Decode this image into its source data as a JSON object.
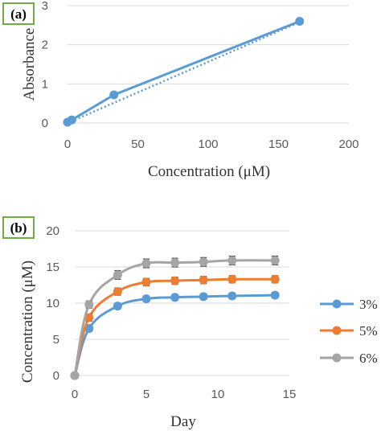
{
  "chart_data": [
    {
      "panel": "(a)",
      "type": "line",
      "xlabel": "Concentration (μM)",
      "ylabel": "Absorbance",
      "xlim": [
        0,
        200
      ],
      "ylim": [
        0,
        3
      ],
      "xticks": [
        0,
        50,
        100,
        150,
        200
      ],
      "yticks": [
        0,
        1,
        2,
        3
      ],
      "grid": "horizontal",
      "legend": "none",
      "color": "#5B9BD5",
      "series": [
        {
          "x": [
            0,
            3,
            33,
            165
          ],
          "y": [
            0.02,
            0.08,
            0.72,
            2.6
          ],
          "marker": "circle"
        }
      ],
      "trendline": {
        "style": "dotted",
        "x": [
          0,
          165
        ],
        "y": [
          0.0,
          2.58
        ]
      }
    },
    {
      "panel": "(b)",
      "type": "line",
      "xlabel": "Day",
      "ylabel": "Concentration (μM)",
      "xlim": [
        0,
        15
      ],
      "ylim": [
        0,
        20
      ],
      "xticks": [
        0,
        5,
        10,
        15
      ],
      "yticks": [
        0,
        5,
        10,
        15,
        20
      ],
      "grid": "horizontal",
      "legend": "right",
      "error_bars": true,
      "series": [
        {
          "name": "3%",
          "color": "#5B9BD5",
          "x": [
            0,
            1,
            3,
            5,
            7,
            9,
            11,
            14
          ],
          "y": [
            0,
            6.5,
            9.6,
            10.6,
            10.8,
            10.9,
            11.0,
            11.1
          ],
          "err": [
            0,
            0.4,
            0.4,
            0.4,
            0.4,
            0.4,
            0.4,
            0.4
          ]
        },
        {
          "name": "5%",
          "color": "#ED7D31",
          "x": [
            0,
            1,
            3,
            5,
            7,
            9,
            11,
            14
          ],
          "y": [
            0,
            8.0,
            11.6,
            12.9,
            13.1,
            13.2,
            13.3,
            13.3
          ],
          "err": [
            0,
            0.5,
            0.5,
            0.5,
            0.5,
            0.5,
            0.5,
            0.5
          ]
        },
        {
          "name": "6%",
          "color": "#A5A5A5",
          "x": [
            0,
            1,
            3,
            5,
            7,
            9,
            11,
            14
          ],
          "y": [
            0,
            9.8,
            13.9,
            15.5,
            15.6,
            15.7,
            15.9,
            15.9
          ],
          "err": [
            0,
            0.5,
            0.6,
            0.6,
            0.6,
            0.6,
            0.6,
            0.6
          ]
        }
      ]
    }
  ]
}
